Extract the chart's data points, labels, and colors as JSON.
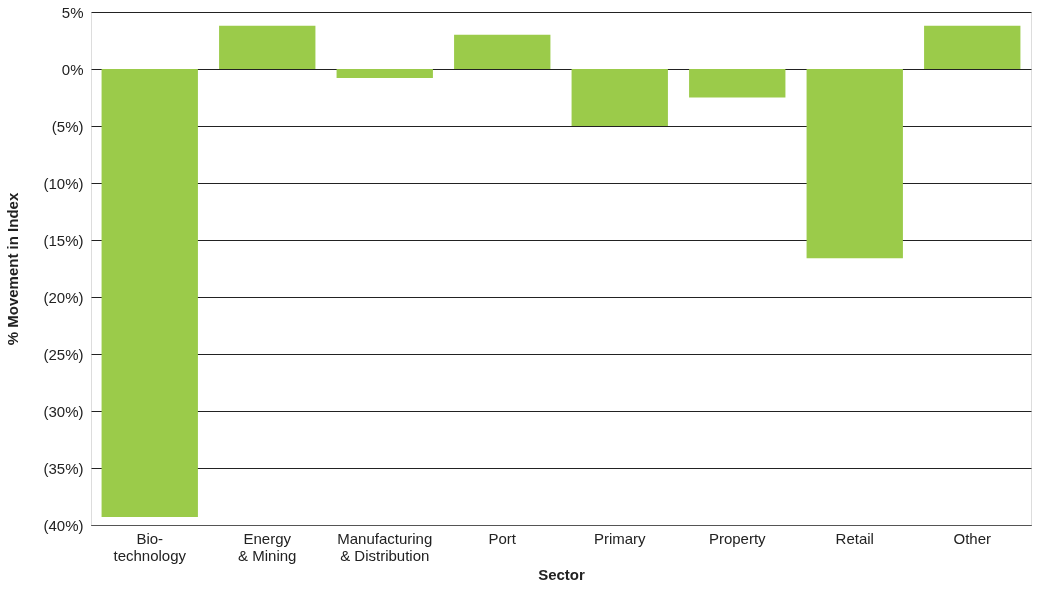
{
  "chart_data": {
    "type": "bar",
    "xlabel": "Sector",
    "ylabel": "% Movement in Index",
    "categories": [
      "Bio-\ntechnology",
      "Energy\n& Mining",
      "Manufacturing\n& Distribution",
      "Port",
      "Primary",
      "Property",
      "Retail",
      "Other"
    ],
    "values": [
      -39.3,
      3.8,
      -0.8,
      3.0,
      -5.0,
      -2.5,
      -16.6,
      3.8
    ],
    "color": "#9bcb4a",
    "ylim": [
      -40,
      5
    ],
    "yticks": [
      {
        "value": -40,
        "label": "(40%)"
      },
      {
        "value": -35,
        "label": "(35%)"
      },
      {
        "value": -30,
        "label": "(30%)"
      },
      {
        "value": -25,
        "label": "(25%)"
      },
      {
        "value": -20,
        "label": "(20%)"
      },
      {
        "value": -15,
        "label": "(15%)"
      },
      {
        "value": -10,
        "label": "(10%)"
      },
      {
        "value": -5,
        "label": "(5%)"
      },
      {
        "value": 0,
        "label": "0%"
      },
      {
        "value": 5,
        "label": "5%"
      }
    ],
    "grid": "y"
  }
}
